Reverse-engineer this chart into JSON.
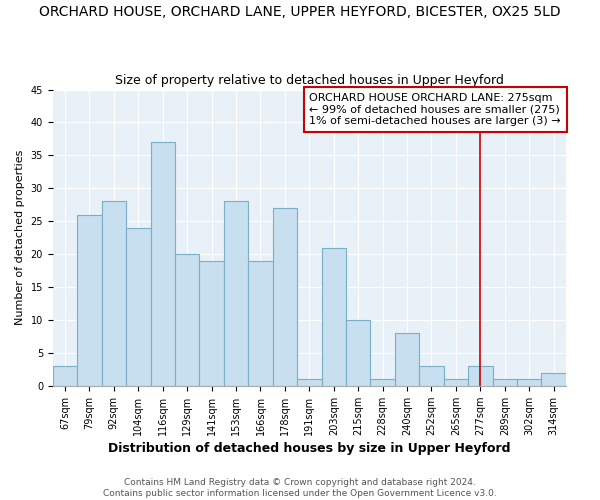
{
  "title": "ORCHARD HOUSE, ORCHARD LANE, UPPER HEYFORD, BICESTER, OX25 5LD",
  "subtitle": "Size of property relative to detached houses in Upper Heyford",
  "xlabel": "Distribution of detached houses by size in Upper Heyford",
  "ylabel": "Number of detached properties",
  "bin_labels": [
    "67sqm",
    "79sqm",
    "92sqm",
    "104sqm",
    "116sqm",
    "129sqm",
    "141sqm",
    "153sqm",
    "166sqm",
    "178sqm",
    "191sqm",
    "203sqm",
    "215sqm",
    "228sqm",
    "240sqm",
    "252sqm",
    "265sqm",
    "277sqm",
    "289sqm",
    "302sqm",
    "314sqm"
  ],
  "bar_values": [
    3,
    26,
    28,
    24,
    37,
    20,
    19,
    28,
    19,
    27,
    1,
    21,
    10,
    1,
    8,
    3,
    1,
    3,
    1,
    1,
    2
  ],
  "bar_color": "#c8dff0",
  "bar_edge_color": "#7aafc8",
  "vline_x_index": 17,
  "vline_color": "#cc0000",
  "annotation_text": "ORCHARD HOUSE ORCHARD LANE: 275sqm\n← 99% of detached houses are smaller (275)\n1% of semi-detached houses are larger (3) →",
  "annotation_box_color": "#ffffff",
  "annotation_box_edge": "#cc0000",
  "ylim": [
    0,
    45
  ],
  "yticks": [
    0,
    5,
    10,
    15,
    20,
    25,
    30,
    35,
    40,
    45
  ],
  "footer_line1": "Contains HM Land Registry data © Crown copyright and database right 2024.",
  "footer_line2": "Contains public sector information licensed under the Open Government Licence v3.0.",
  "fig_background_color": "#ffffff",
  "plot_background_color": "#e8f0f8",
  "grid_color": "#ffffff",
  "title_fontsize": 10,
  "subtitle_fontsize": 9,
  "xlabel_fontsize": 9,
  "ylabel_fontsize": 8,
  "tick_fontsize": 7,
  "annotation_fontsize": 8,
  "footer_fontsize": 6.5
}
